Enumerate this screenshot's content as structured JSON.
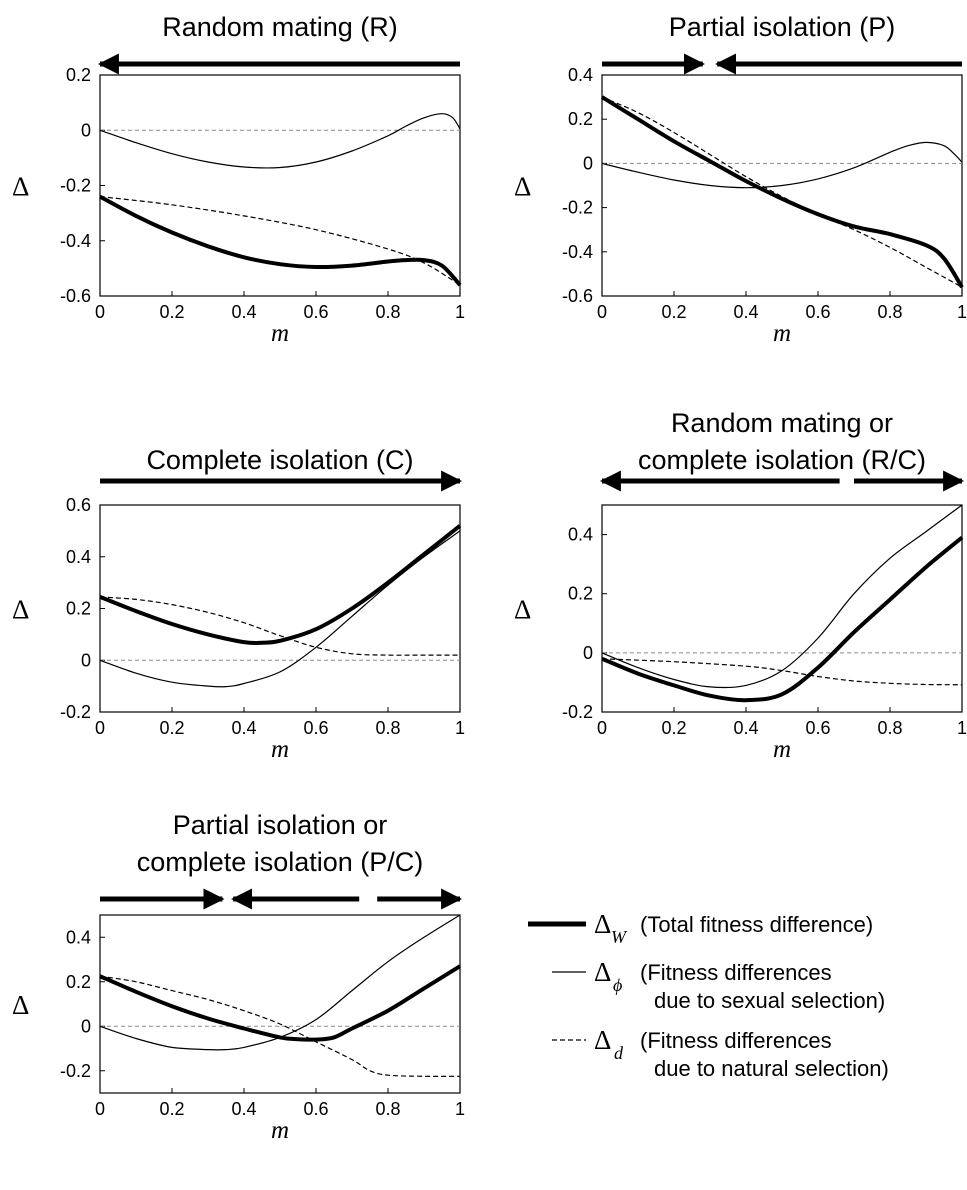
{
  "legend": {
    "w": {
      "symbol": "Δ",
      "sub": "W",
      "line1": "(Total fitness difference)",
      "line2": ""
    },
    "phi": {
      "symbol": "Δ",
      "sub": "ϕ",
      "line1": "(Fitness differences",
      "line2": "due to sexual selection)"
    },
    "d": {
      "symbol": "Δ",
      "sub": "d",
      "line1": "(Fitness differences",
      "line2": "due to natural selection)"
    }
  },
  "chart_data": [
    {
      "type": "line",
      "title": [
        "Random mating (R)"
      ],
      "xlabel": "m",
      "ylabel": "Δ",
      "xlim": [
        0,
        1
      ],
      "ylim": [
        -0.6,
        0.2
      ],
      "xticks": [
        "0",
        "0.2",
        "0.4",
        "0.6",
        "0.8",
        "1"
      ],
      "yticks": [
        "-0.6",
        "-0.4",
        "-0.2",
        "0",
        "0.2"
      ],
      "arrows": [
        {
          "from": 1,
          "to": 0
        }
      ],
      "series": [
        {
          "name": "Δ_W",
          "style": "thick",
          "x": [
            0,
            0.1,
            0.2,
            0.3,
            0.4,
            0.5,
            0.6,
            0.7,
            0.8,
            0.85,
            0.9,
            0.95,
            1
          ],
          "y": [
            -0.24,
            -0.31,
            -0.37,
            -0.42,
            -0.46,
            -0.485,
            -0.495,
            -0.49,
            -0.475,
            -0.47,
            -0.47,
            -0.49,
            -0.56
          ]
        },
        {
          "name": "Δ_ϕ",
          "style": "thin",
          "x": [
            0,
            0.1,
            0.2,
            0.3,
            0.4,
            0.5,
            0.6,
            0.7,
            0.8,
            0.85,
            0.9,
            0.95,
            0.98,
            1
          ],
          "y": [
            0,
            -0.045,
            -0.085,
            -0.115,
            -0.133,
            -0.135,
            -0.115,
            -0.075,
            -0.02,
            0.015,
            0.045,
            0.06,
            0.045,
            0.005
          ]
        },
        {
          "name": "Δ_d",
          "style": "dashed",
          "x": [
            0,
            0.2,
            0.4,
            0.6,
            0.8,
            0.9,
            1
          ],
          "y": [
            -0.24,
            -0.27,
            -0.31,
            -0.36,
            -0.43,
            -0.48,
            -0.56
          ]
        },
        {
          "name": "zero",
          "style": "zero",
          "x": [
            0,
            1
          ],
          "y": [
            0,
            0
          ]
        }
      ]
    },
    {
      "type": "line",
      "title": [
        "Partial isolation (P)"
      ],
      "xlabel": "m",
      "ylabel": "Δ",
      "xlim": [
        0,
        1
      ],
      "ylim": [
        -0.6,
        0.4
      ],
      "xticks": [
        "0",
        "0.2",
        "0.4",
        "0.6",
        "0.8",
        "1"
      ],
      "yticks": [
        "-0.6",
        "-0.4",
        "-0.2",
        "0",
        "0.2",
        "0.4"
      ],
      "arrows": [
        {
          "from": 0,
          "to": 0.28
        },
        {
          "from": 1,
          "to": 0.32
        }
      ],
      "series": [
        {
          "name": "Δ_W",
          "style": "thick",
          "x": [
            0,
            0.1,
            0.2,
            0.3,
            0.4,
            0.5,
            0.6,
            0.7,
            0.8,
            0.9,
            0.95,
            1
          ],
          "y": [
            0.3,
            0.2,
            0.1,
            0.01,
            -0.08,
            -0.16,
            -0.23,
            -0.285,
            -0.32,
            -0.37,
            -0.43,
            -0.56
          ]
        },
        {
          "name": "Δ_ϕ",
          "style": "thin",
          "x": [
            0,
            0.1,
            0.2,
            0.3,
            0.4,
            0.5,
            0.6,
            0.7,
            0.8,
            0.85,
            0.9,
            0.95,
            0.98,
            1
          ],
          "y": [
            0,
            -0.04,
            -0.075,
            -0.1,
            -0.11,
            -0.1,
            -0.07,
            -0.02,
            0.05,
            0.08,
            0.095,
            0.08,
            0.04,
            0.005
          ]
        },
        {
          "name": "Δ_d",
          "style": "dashed",
          "x": [
            0,
            0.1,
            0.2,
            0.3,
            0.4,
            0.5,
            0.6,
            0.7,
            0.8,
            0.9,
            1
          ],
          "y": [
            0.3,
            0.23,
            0.14,
            0.04,
            -0.06,
            -0.15,
            -0.23,
            -0.3,
            -0.38,
            -0.47,
            -0.56
          ]
        },
        {
          "name": "zero",
          "style": "zero",
          "x": [
            0,
            1
          ],
          "y": [
            0,
            0
          ]
        }
      ]
    },
    {
      "type": "line",
      "title": [
        "Complete isolation (C)"
      ],
      "xlabel": "m",
      "ylabel": "Δ",
      "xlim": [
        0,
        1
      ],
      "ylim": [
        -0.2,
        0.6
      ],
      "xticks": [
        "0",
        "0.2",
        "0.4",
        "0.6",
        "0.8",
        "1"
      ],
      "yticks": [
        "-0.2",
        "0",
        "0.2",
        "0.4",
        "0.6"
      ],
      "arrows": [
        {
          "from": 0,
          "to": 1
        }
      ],
      "series": [
        {
          "name": "Δ_W",
          "style": "thick",
          "x": [
            0,
            0.1,
            0.2,
            0.3,
            0.4,
            0.45,
            0.5,
            0.6,
            0.7,
            0.8,
            0.9,
            1
          ],
          "y": [
            0.245,
            0.19,
            0.14,
            0.1,
            0.07,
            0.068,
            0.075,
            0.12,
            0.2,
            0.3,
            0.41,
            0.52
          ]
        },
        {
          "name": "Δ_ϕ",
          "style": "thin",
          "x": [
            0,
            0.1,
            0.2,
            0.3,
            0.35,
            0.4,
            0.5,
            0.6,
            0.7,
            0.8,
            0.9,
            1
          ],
          "y": [
            0,
            -0.05,
            -0.085,
            -0.1,
            -0.102,
            -0.09,
            -0.045,
            0.05,
            0.17,
            0.29,
            0.4,
            0.5
          ]
        },
        {
          "name": "Δ_d",
          "style": "dashed",
          "x": [
            0,
            0.1,
            0.2,
            0.3,
            0.4,
            0.5,
            0.6,
            0.7,
            0.8,
            0.9,
            1
          ],
          "y": [
            0.245,
            0.235,
            0.215,
            0.185,
            0.145,
            0.095,
            0.05,
            0.025,
            0.02,
            0.02,
            0.02
          ]
        },
        {
          "name": "zero",
          "style": "zero",
          "x": [
            0,
            1
          ],
          "y": [
            0,
            0
          ]
        }
      ]
    },
    {
      "type": "line",
      "title": [
        "Random mating or",
        "complete isolation (R/C)"
      ],
      "xlabel": "m",
      "ylabel": "Δ",
      "xlim": [
        0,
        1
      ],
      "ylim": [
        -0.2,
        0.5
      ],
      "xticks": [
        "0",
        "0.2",
        "0.4",
        "0.6",
        "0.8",
        "1"
      ],
      "yticks": [
        "-0.2",
        "0",
        "0.2",
        "0.4"
      ],
      "arrows": [
        {
          "from": 0.66,
          "to": 0
        },
        {
          "from": 0.7,
          "to": 1
        }
      ],
      "series": [
        {
          "name": "Δ_W",
          "style": "thick",
          "x": [
            0,
            0.1,
            0.2,
            0.3,
            0.4,
            0.5,
            0.6,
            0.7,
            0.8,
            0.9,
            1
          ],
          "y": [
            -0.02,
            -0.07,
            -0.11,
            -0.145,
            -0.16,
            -0.14,
            -0.05,
            0.07,
            0.18,
            0.29,
            0.39
          ]
        },
        {
          "name": "Δ_ϕ",
          "style": "thin",
          "x": [
            0,
            0.1,
            0.2,
            0.3,
            0.4,
            0.5,
            0.6,
            0.7,
            0.8,
            0.9,
            1
          ],
          "y": [
            0,
            -0.05,
            -0.09,
            -0.115,
            -0.11,
            -0.06,
            0.05,
            0.2,
            0.32,
            0.41,
            0.5
          ]
        },
        {
          "name": "Δ_d",
          "style": "dashed",
          "x": [
            0,
            0.2,
            0.4,
            0.5,
            0.6,
            0.7,
            0.8,
            0.9,
            1
          ],
          "y": [
            -0.02,
            -0.03,
            -0.045,
            -0.06,
            -0.08,
            -0.095,
            -0.103,
            -0.107,
            -0.108
          ]
        },
        {
          "name": "zero",
          "style": "zero",
          "x": [
            0,
            1
          ],
          "y": [
            0,
            0
          ]
        }
      ]
    },
    {
      "type": "line",
      "title": [
        "Partial isolation or",
        "complete isolation (P/C)"
      ],
      "xlabel": "m",
      "ylabel": "Δ",
      "xlim": [
        0,
        1
      ],
      "ylim": [
        -0.3,
        0.5
      ],
      "xticks": [
        "0",
        "0.2",
        "0.4",
        "0.6",
        "0.8",
        "1"
      ],
      "yticks": [
        "-0.2",
        "0",
        "0.2",
        "0.4"
      ],
      "arrows": [
        {
          "from": 0,
          "to": 0.34
        },
        {
          "from": 0.72,
          "to": 0.37
        },
        {
          "from": 0.77,
          "to": 1
        }
      ],
      "series": [
        {
          "name": "Δ_W",
          "style": "thick",
          "x": [
            0,
            0.1,
            0.2,
            0.3,
            0.4,
            0.5,
            0.55,
            0.6,
            0.65,
            0.7,
            0.8,
            0.9,
            1
          ],
          "y": [
            0.225,
            0.155,
            0.09,
            0.035,
            -0.01,
            -0.05,
            -0.058,
            -0.06,
            -0.05,
            -0.01,
            0.07,
            0.17,
            0.27
          ]
        },
        {
          "name": "Δ_ϕ",
          "style": "thin",
          "x": [
            0,
            0.1,
            0.2,
            0.3,
            0.35,
            0.4,
            0.5,
            0.6,
            0.7,
            0.8,
            0.9,
            1
          ],
          "y": [
            0,
            -0.055,
            -0.095,
            -0.105,
            -0.105,
            -0.095,
            -0.05,
            0.03,
            0.16,
            0.29,
            0.4,
            0.5
          ]
        },
        {
          "name": "Δ_d",
          "style": "dashed",
          "x": [
            0,
            0.1,
            0.2,
            0.3,
            0.4,
            0.5,
            0.6,
            0.7,
            0.75,
            0.8,
            0.9,
            1
          ],
          "y": [
            0.225,
            0.2,
            0.16,
            0.12,
            0.07,
            0.01,
            -0.07,
            -0.15,
            -0.2,
            -0.22,
            -0.225,
            -0.225
          ]
        },
        {
          "name": "zero",
          "style": "zero",
          "x": [
            0,
            1
          ],
          "y": [
            0,
            0
          ]
        }
      ]
    }
  ]
}
